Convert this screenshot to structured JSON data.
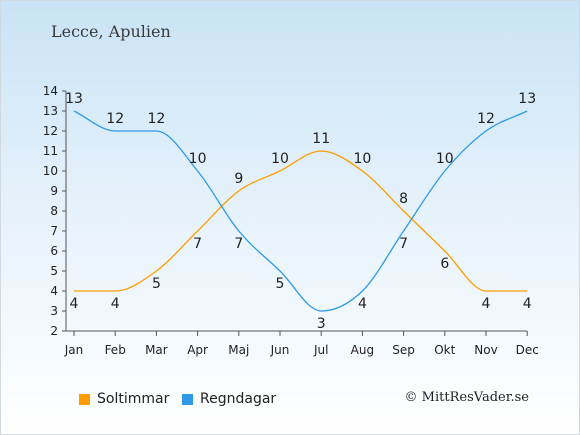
{
  "title": "Lecce, Apulien",
  "copyright": "© MittResVader.se",
  "chart_data": {
    "type": "line",
    "categories": [
      "Jan",
      "Feb",
      "Mar",
      "Apr",
      "Maj",
      "Jun",
      "Jul",
      "Aug",
      "Sep",
      "Okt",
      "Nov",
      "Dec"
    ],
    "ylim": [
      2,
      14
    ],
    "yticks": [
      2,
      3,
      4,
      5,
      6,
      7,
      8,
      9,
      10,
      11,
      12,
      13,
      14
    ],
    "grid": false,
    "legend_position": "bottom-left",
    "series": [
      {
        "name": "Soltimmar",
        "color": "#ff9d00",
        "values": [
          4,
          4,
          5,
          7,
          9,
          10,
          11,
          10,
          8,
          6,
          4,
          4
        ]
      },
      {
        "name": "Regndagar",
        "color": "#2e9ae6",
        "values": [
          13,
          12,
          12,
          10,
          7,
          5,
          3,
          4,
          7,
          10,
          12,
          13
        ]
      }
    ]
  }
}
